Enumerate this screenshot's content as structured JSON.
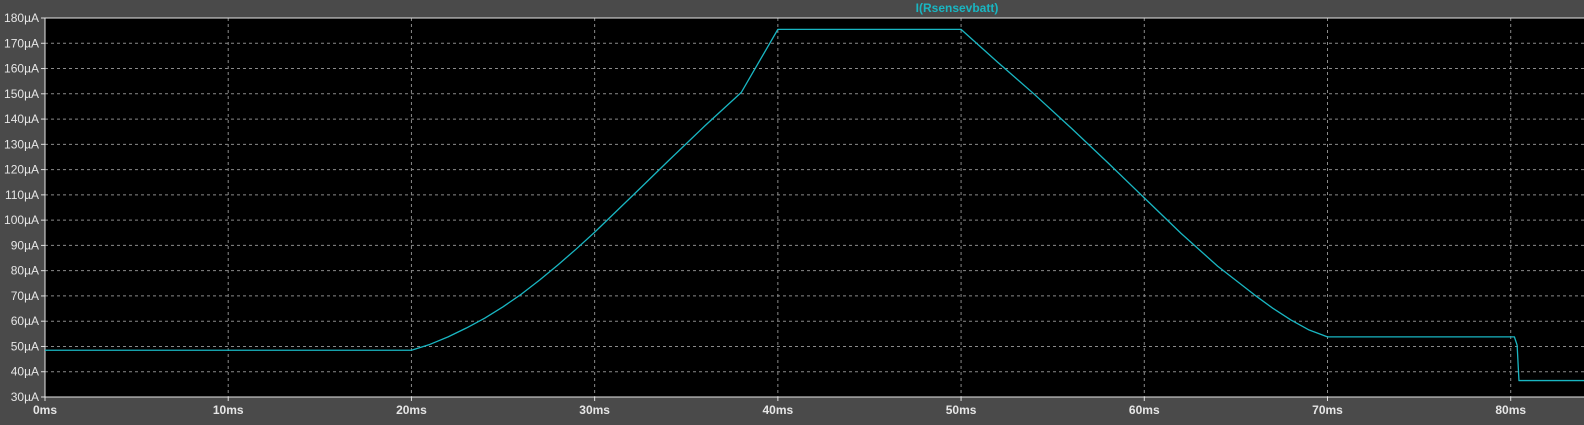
{
  "window": {
    "background": "#4a4a4a",
    "plot_background": "#000000"
  },
  "chart_data": {
    "type": "line",
    "title": "",
    "xlabel": "",
    "ylabel": "",
    "xlim": [
      0,
      84
    ],
    "ylim": [
      30,
      180
    ],
    "grid": true,
    "x_ticks": [
      0,
      10,
      20,
      30,
      40,
      50,
      60,
      70,
      80
    ],
    "x_tick_labels": [
      "0ms",
      "10ms",
      "20ms",
      "30ms",
      "40ms",
      "50ms",
      "60ms",
      "70ms",
      "80ms"
    ],
    "y_ticks": [
      30,
      40,
      50,
      60,
      70,
      80,
      90,
      100,
      110,
      120,
      130,
      140,
      150,
      160,
      170,
      180
    ],
    "y_tick_labels": [
      "30µA",
      "40µA",
      "50µA",
      "60µA",
      "70µA",
      "80µA",
      "90µA",
      "100µA",
      "110µA",
      "120µA",
      "130µA",
      "140µA",
      "150µA",
      "160µA",
      "170µA",
      "180µA"
    ],
    "x_unit": "ms",
    "y_unit": "µA",
    "series": [
      {
        "name": "I(Rsensevbatt)",
        "color": "#19b6c2",
        "x": [
          0,
          20,
          21,
          22,
          23,
          24,
          25,
          26,
          27,
          28,
          29,
          30,
          32,
          34,
          36,
          38,
          40,
          50,
          52,
          54,
          56,
          58,
          60,
          62,
          64,
          66,
          67,
          68,
          69,
          70,
          80,
          80.2,
          80.35,
          80.45,
          84
        ],
        "y": [
          48.5,
          48.5,
          50.8,
          53.8,
          57.3,
          61.2,
          65.7,
          70.7,
          76.3,
          82.3,
          88.6,
          95.2,
          109.2,
          123.3,
          137.2,
          150.5,
          175.5,
          175.5,
          162.5,
          149.8,
          136.5,
          122.8,
          108.8,
          94.8,
          81.8,
          70.5,
          65.2,
          60.5,
          56.5,
          53.8,
          53.8,
          53.8,
          50.5,
          36.5,
          36.5
        ]
      }
    ]
  }
}
